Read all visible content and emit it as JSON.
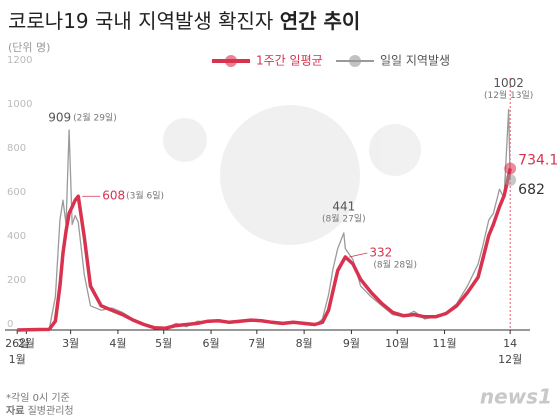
{
  "chart_data": {
    "type": "line",
    "title": "코로나19 국내 지역발생 확진자",
    "title_bold": "연간 추이",
    "unit": "(단위 명)",
    "x": [
      0,
      7,
      14,
      21,
      25,
      28,
      30,
      32,
      34,
      36,
      38,
      40,
      44,
      48,
      55,
      62,
      69,
      76,
      83,
      90,
      97,
      104,
      111,
      118,
      125,
      132,
      139,
      146,
      153,
      160,
      167,
      174,
      181,
      188,
      195,
      200,
      204,
      207,
      210,
      214,
      215,
      220,
      225,
      232,
      239,
      246,
      253,
      260,
      267,
      274,
      281,
      288,
      295,
      302,
      305,
      309,
      312,
      316,
      319,
      322,
      323
    ],
    "xlim": [
      -8,
      336
    ],
    "xticks": [
      {
        "value": 0,
        "label": "26일",
        "sublabel": "1월"
      },
      {
        "value": 6,
        "label": "2월"
      },
      {
        "value": 35,
        "label": "3월"
      },
      {
        "value": 66,
        "label": "4월"
      },
      {
        "value": 96,
        "label": "5월"
      },
      {
        "value": 127,
        "label": "6월"
      },
      {
        "value": 157,
        "label": "7월"
      },
      {
        "value": 188,
        "label": "8월"
      },
      {
        "value": 219,
        "label": "9월"
      },
      {
        "value": 249,
        "label": "10월"
      },
      {
        "value": 280,
        "label": "11월"
      },
      {
        "value": 323,
        "label": "14",
        "sublabel": "12월"
      }
    ],
    "ylim": [
      0,
      1200
    ],
    "yticks": [
      0,
      200,
      400,
      600,
      800,
      1000,
      1200
    ],
    "series": [
      {
        "name": "1주간 일평균",
        "color": "#d8324f",
        "values": [
          0,
          1,
          2,
          3,
          40,
          200,
          350,
          450,
          530,
          560,
          590,
          608,
          420,
          200,
          110,
          90,
          70,
          45,
          25,
          10,
          8,
          20,
          25,
          30,
          40,
          42,
          35,
          40,
          45,
          42,
          35,
          30,
          35,
          30,
          25,
          35,
          90,
          180,
          270,
          320,
          332,
          300,
          230,
          170,
          120,
          80,
          65,
          70,
          60,
          60,
          75,
          110,
          170,
          240,
          320,
          430,
          480,
          560,
          610,
          700,
          734.1
        ]
      },
      {
        "name": "일일 지역발생",
        "color": "#9a9a9a",
        "values": [
          0,
          1,
          2,
          5,
          150,
          500,
          590,
          480,
          909,
          480,
          520,
          490,
          250,
          110,
          90,
          100,
          80,
          50,
          30,
          10,
          5,
          30,
          15,
          40,
          35,
          40,
          30,
          45,
          40,
          45,
          30,
          25,
          40,
          25,
          20,
          50,
          160,
          280,
          370,
          441,
          370,
          320,
          200,
          150,
          110,
          70,
          60,
          85,
          50,
          60,
          80,
          120,
          200,
          300,
          380,
          500,
          530,
          640,
          600,
          1002,
          682
        ]
      }
    ],
    "annotations": [
      {
        "series": 1,
        "index": 8,
        "date": "(2월 29일)"
      },
      {
        "series": 0,
        "index": 11,
        "date": "(3월 6일)"
      },
      {
        "series": 1,
        "index": 39,
        "date": "(8월 27일)"
      },
      {
        "series": 0,
        "index": 40,
        "date": "(8월 28일)"
      },
      {
        "series": 1,
        "index": 59,
        "date": "(12월 13일)"
      },
      {
        "series": 0,
        "index": 60
      },
      {
        "series": 1,
        "index": 60
      }
    ],
    "footnote": "*각일 0시 기준",
    "source_label": "자료",
    "source": "질병관리청",
    "logo": "news1"
  }
}
